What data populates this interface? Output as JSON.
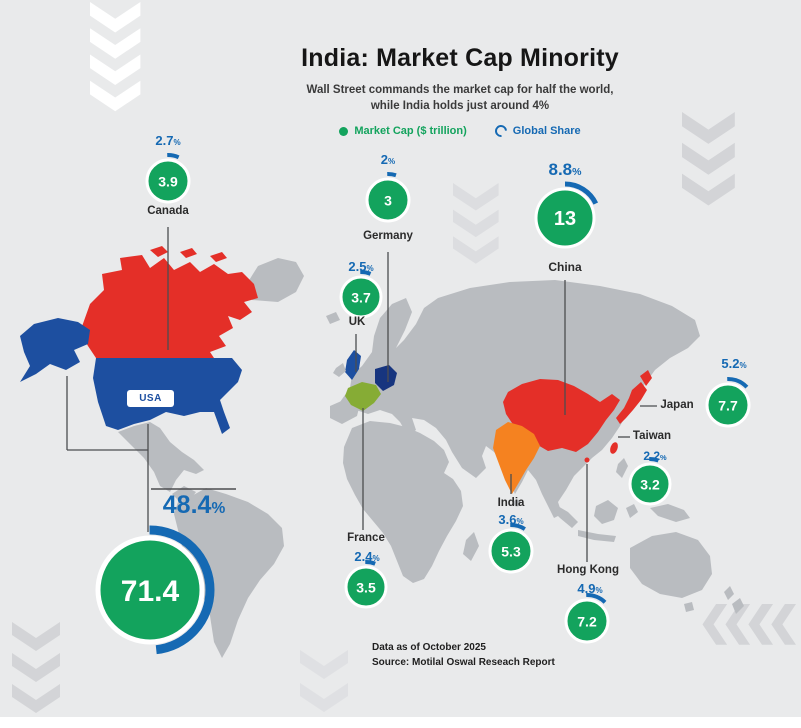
{
  "page": {
    "title": "India: Market Cap Minority",
    "subtitle_line1": "Wall Street commands the market cap for half the world,",
    "subtitle_line2": "while India holds just around 4%",
    "footer_line1": "Data as of October 2025",
    "footer_line2": "Source: Motilal Oswal Reseach Report"
  },
  "legend": {
    "market_cap_label": "Market Cap ($ trillion)",
    "global_share_label": "Global Share"
  },
  "map": {
    "usa_label": "USA"
  },
  "colors": {
    "background": "#e9eaeb",
    "map-gray": "#b9bcc0",
    "green": "#13a35d",
    "blue": "#1569b3",
    "red": "#e42f28",
    "navy": "#1d4fa0",
    "germany-navy": "#17357f",
    "orange": "#f58220",
    "france-green": "#86ac35"
  },
  "chart_data": {
    "type": "table",
    "title": "India: Market Cap Minority",
    "value_label": "Market Cap ($ trillion)",
    "share_label": "Global Share (%)",
    "countries": [
      {
        "name": "USA",
        "market_cap": 71.4,
        "share_pct": 48.4
      },
      {
        "name": "Canada",
        "market_cap": 3.9,
        "share_pct": 2.7
      },
      {
        "name": "UK",
        "market_cap": 3.7,
        "share_pct": 2.5
      },
      {
        "name": "France",
        "market_cap": 3.5,
        "share_pct": 2.4
      },
      {
        "name": "Germany",
        "market_cap": 3,
        "share_pct": 2
      },
      {
        "name": "China",
        "market_cap": 13,
        "share_pct": 8.8
      },
      {
        "name": "India",
        "market_cap": 5.3,
        "share_pct": 3.6
      },
      {
        "name": "Japan",
        "market_cap": 7.7,
        "share_pct": 5.2
      },
      {
        "name": "Taiwan",
        "market_cap": 3.2,
        "share_pct": 2.2
      },
      {
        "name": "Hong Kong",
        "market_cap": 7.2,
        "share_pct": 4.9
      }
    ]
  }
}
